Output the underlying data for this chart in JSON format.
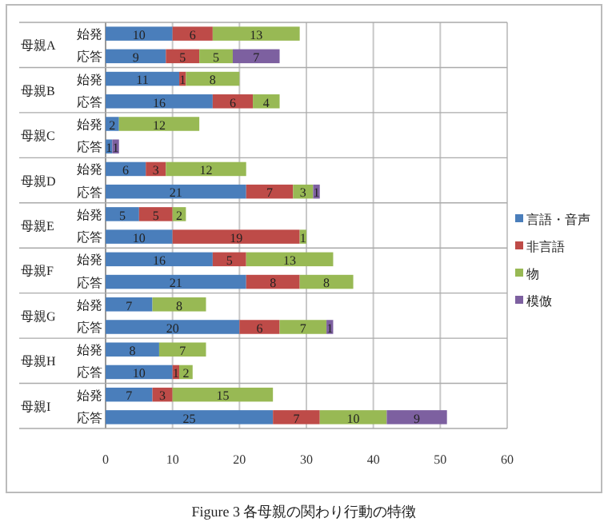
{
  "chart_data": {
    "type": "bar",
    "orientation": "horizontal",
    "stacked": true,
    "categories": [
      "始発",
      "応答",
      "始発",
      "応答",
      "始発",
      "応答",
      "始発",
      "応答",
      "始発",
      "応答",
      "始発",
      "応答",
      "始発",
      "応答",
      "始発",
      "応答",
      "始発",
      "応答"
    ],
    "annotations": [
      "母親A",
      "母親B",
      "母親C",
      "母親D",
      "母親E",
      "母親F",
      "母親G",
      "母親H",
      "母親I",
      "Figure 3 各母親の関わり行動の特徴"
    ],
    "series": [
      {
        "name": "言語・音声",
        "color": "#4a7ebb",
        "values": [
          10,
          9,
          11,
          16,
          2,
          1,
          6,
          21,
          5,
          10,
          16,
          21,
          7,
          20,
          8,
          10,
          7,
          25
        ]
      },
      {
        "name": "非言語",
        "color": "#be4b48",
        "values": [
          6,
          5,
          1,
          6,
          null,
          null,
          3,
          7,
          5,
          19,
          5,
          8,
          null,
          6,
          null,
          1,
          3,
          7
        ]
      },
      {
        "name": "物",
        "color": "#98b954",
        "values": [
          13,
          5,
          8,
          4,
          12,
          null,
          12,
          3,
          2,
          1,
          13,
          8,
          8,
          7,
          7,
          2,
          15,
          10
        ]
      },
      {
        "name": "模倣",
        "color": "#7d60a0",
        "values": [
          null,
          7,
          null,
          null,
          null,
          1,
          null,
          1,
          null,
          null,
          null,
          null,
          null,
          1,
          null,
          null,
          null,
          9
        ]
      }
    ],
    "xlim": [
      0,
      60
    ],
    "xticks": [
      0,
      10,
      20,
      30,
      40,
      50,
      60
    ],
    "grid": "x",
    "legend": "right",
    "data_labels": true
  }
}
